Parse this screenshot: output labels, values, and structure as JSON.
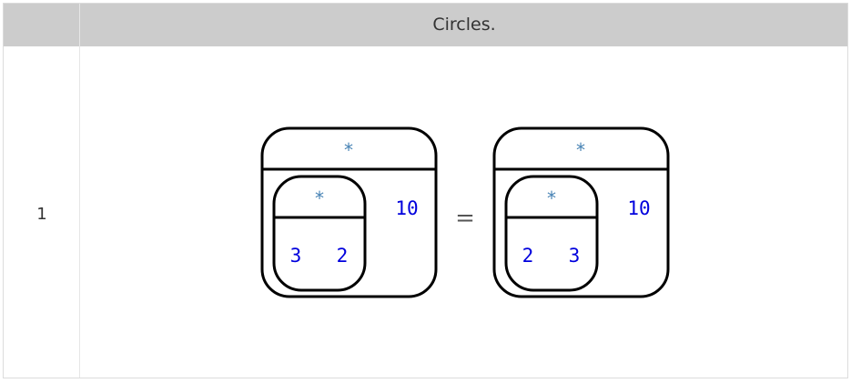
{
  "header": {
    "title": "Circles."
  },
  "rows": [
    {
      "index": "1",
      "equation": {
        "equals_sign": "=",
        "left": {
          "operator": "*",
          "inner": {
            "operator": "*",
            "operands": [
              "3",
              "2"
            ]
          },
          "operand": "10"
        },
        "right": {
          "operator": "*",
          "inner": {
            "operator": "*",
            "operands": [
              "2",
              "3"
            ]
          },
          "operand": "10"
        }
      }
    }
  ],
  "colors": {
    "header_background": "#cccccc",
    "operator_color": "#4682b4",
    "number_color": "#0000dd",
    "outline_color": "#000000"
  }
}
